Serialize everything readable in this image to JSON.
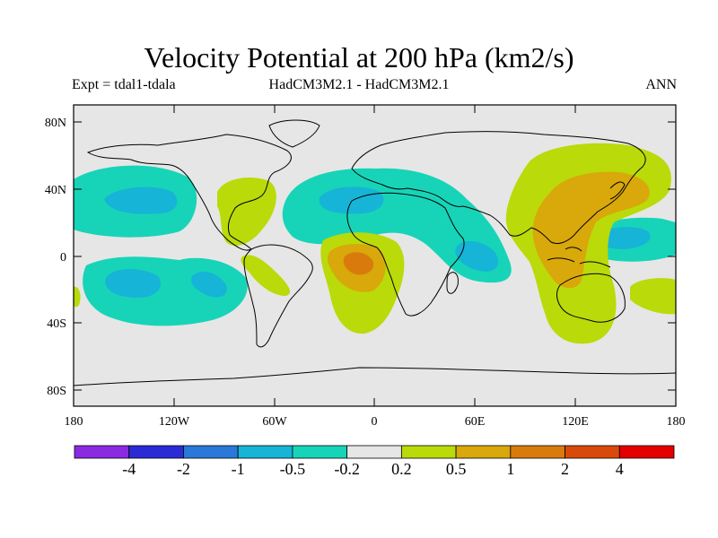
{
  "header": {
    "title": "Velocity Potential at 200 hPa (km2/s)",
    "expt": "Expt = tdal1-tdala",
    "models": "HadCM3M2.1 - HadCM3M2.1",
    "season": "ANN"
  },
  "map": {
    "lat_ticks": [
      "80N",
      "40N",
      "0",
      "40S",
      "80S"
    ],
    "lon_ticks": [
      "180",
      "120W",
      "60W",
      "0",
      "60E",
      "120E",
      "180"
    ]
  },
  "colorbar": {
    "colors": [
      "#8a2be2",
      "#2b2bd6",
      "#2a78d8",
      "#16b4d6",
      "#17d4b8",
      "#e6e6e6",
      "#bada0a",
      "#d9a80a",
      "#d97b0c",
      "#d94a0a",
      "#e40000"
    ],
    "labels": [
      "-4",
      "-2",
      "-1",
      "-0.5",
      "-0.2",
      "0.2",
      "0.5",
      "1",
      "2",
      "4"
    ]
  },
  "palette": {
    "background": "#e6e6e6",
    "neg_02": "#17d4b8",
    "neg_05": "#16b4d6",
    "pos_02": "#bada0a",
    "pos_05": "#d9a80a",
    "pos_1": "#d97b0c"
  }
}
